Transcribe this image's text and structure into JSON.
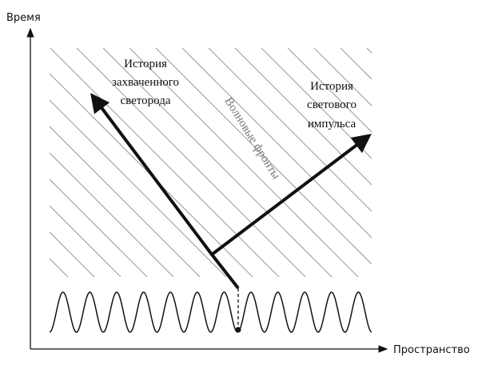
{
  "labels": {
    "y_axis": "Время",
    "x_axis": "Пространство",
    "trapped_history": [
      "История",
      "захваченного",
      "светорода"
    ],
    "pulse_history": [
      "История",
      "светового",
      "импульса"
    ],
    "wavefronts": "Волновые фронты"
  }
}
